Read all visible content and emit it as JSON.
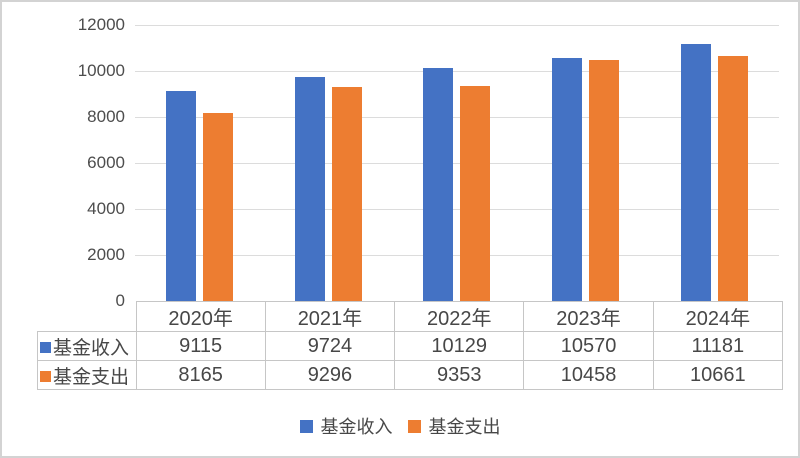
{
  "chart_data": {
    "type": "bar",
    "title": "",
    "categories": [
      "2020年",
      "2021年",
      "2022年",
      "2023年",
      "2024年"
    ],
    "series": [
      {
        "name": "基金收入",
        "color": "#4472C4",
        "values": [
          9115,
          9724,
          10129,
          10570,
          11181
        ]
      },
      {
        "name": "基金支出",
        "color": "#ED7D31",
        "values": [
          8165,
          9296,
          9353,
          10458,
          10661
        ]
      }
    ],
    "ylim": [
      0,
      12000
    ],
    "yticks": [
      0,
      2000,
      4000,
      6000,
      8000,
      10000,
      12000
    ],
    "grid": true,
    "legend_position": "bottom",
    "has_data_table": true,
    "colors": {
      "gridline": "#dcdcdc",
      "table_border": "#c6c6c6",
      "text": "#474747",
      "frame_border": "#d3d3d3"
    }
  }
}
